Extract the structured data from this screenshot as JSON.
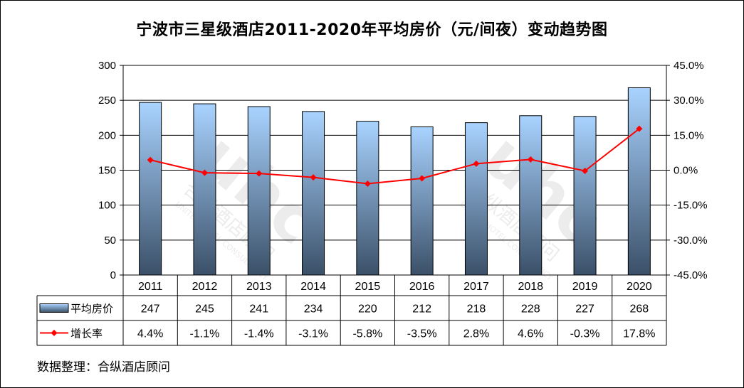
{
  "chart_data": {
    "type": "bar",
    "title": "宁波市三星级酒店2011-2020年平均房价（元/间夜）变动趋势图",
    "categories": [
      "2011",
      "2012",
      "2013",
      "2014",
      "2015",
      "2016",
      "2017",
      "2018",
      "2019",
      "2020"
    ],
    "series": [
      {
        "name": "平均房价",
        "type": "bar",
        "axis": "left",
        "values": [
          247,
          245,
          241,
          234,
          220,
          212,
          218,
          228,
          227,
          268
        ],
        "labels": [
          "247",
          "245",
          "241",
          "234",
          "220",
          "212",
          "218",
          "228",
          "227",
          "268"
        ]
      },
      {
        "name": "增长率",
        "type": "line",
        "axis": "right",
        "values": [
          4.4,
          -1.1,
          -1.4,
          -3.1,
          -5.8,
          -3.5,
          2.8,
          4.6,
          -0.3,
          17.8
        ],
        "labels": [
          "4.4%",
          "-1.1%",
          "-1.4%",
          "-3.1%",
          "-5.8%",
          "-3.5%",
          "2.8%",
          "4.6%",
          "-0.3%",
          "17.8%"
        ]
      }
    ],
    "ylim_left": [
      0,
      300
    ],
    "yticks_left": [
      "300",
      "250",
      "200",
      "150",
      "100",
      "50",
      "0"
    ],
    "ylim_right": [
      -45,
      45
    ],
    "yticks_right": [
      "45.0%",
      "30.0%",
      "15.0%",
      "0.0%",
      "-15.0%",
      "-30.0%",
      "-45.0%"
    ],
    "grid": true,
    "legend": "data-table",
    "colors": {
      "bar_top": "#a9d3ff",
      "bar_bottom": "#3b5068",
      "line": "#ff0000",
      "grid": "#000000"
    }
  },
  "source_note": "数据整理：合纵酒店顾问",
  "watermark": {
    "logo": "uhc",
    "cn": "合纵酒店顾问",
    "en": "UNITED HOTEL CONSULTANCY"
  }
}
